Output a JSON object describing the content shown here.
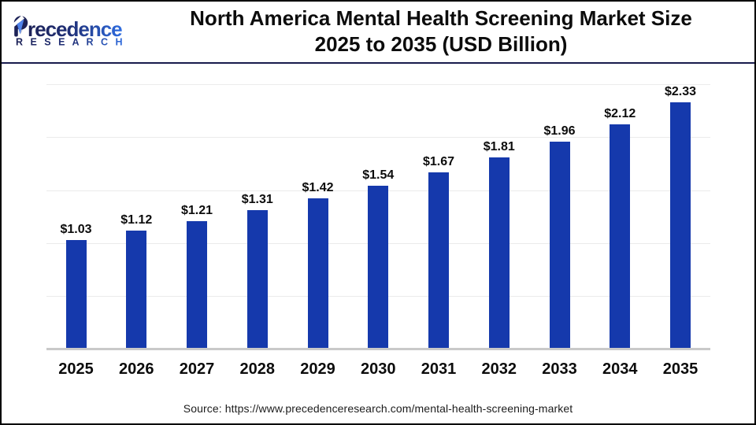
{
  "header": {
    "title_line1": "North America Mental Health Screening Market Size",
    "title_line2": "2025 to 2035 (USD Billion)",
    "logo": {
      "brand_name": "recedence",
      "brand_sub": "R E S E A R C H"
    }
  },
  "footer": {
    "source": "Source: https://www.precedenceresearch.com/mental-health-screening-market"
  },
  "colors": {
    "bar": "#1539ac",
    "divider": "#181b4d",
    "gridline": "#ebebeb",
    "baseline": "#c9c9c9",
    "logo_dark": "#1d2257",
    "logo_bright": "#2e6ce0",
    "logo_leaf": "#4f82ea"
  },
  "chart_data": {
    "type": "bar",
    "title": "North America Mental Health Screening Market Size 2025 to 2035 (USD Billion)",
    "categories": [
      "2025",
      "2026",
      "2027",
      "2028",
      "2029",
      "2030",
      "2031",
      "2032",
      "2033",
      "2034",
      "2035"
    ],
    "values": [
      1.03,
      1.12,
      1.21,
      1.31,
      1.42,
      1.54,
      1.67,
      1.81,
      1.96,
      2.12,
      2.33
    ],
    "value_labels": [
      "$1.03",
      "$1.12",
      "$1.21",
      "$1.31",
      "$1.42",
      "$1.54",
      "$1.67",
      "$1.81",
      "$1.96",
      "$2.12",
      "$2.33"
    ],
    "xlabel": "",
    "ylabel": "",
    "ylim": [
      0,
      2.5
    ],
    "grid_step": 0.5,
    "grid": "horizontal",
    "legend": "none"
  }
}
